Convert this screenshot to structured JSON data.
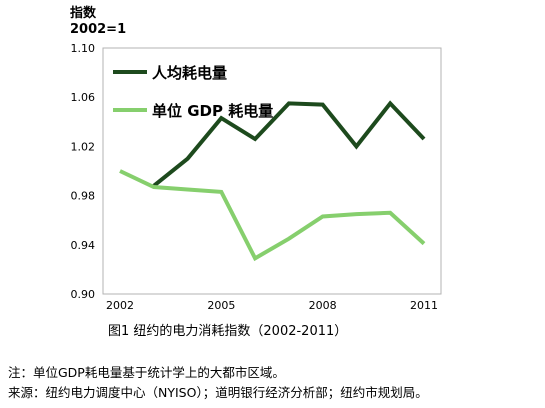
{
  "chart_data": {
    "type": "line",
    "ylabel_line1": "指数",
    "ylabel_line2": "2002=1",
    "x": [
      2002,
      2003,
      2004,
      2005,
      2006,
      2007,
      2008,
      2009,
      2010,
      2011
    ],
    "x_ticks": [
      2002,
      2005,
      2008,
      2011
    ],
    "y_ticks": [
      "0.90",
      "0.94",
      "0.98",
      "1.02",
      "1.06",
      "1.10"
    ],
    "ylim": [
      0.9,
      1.1
    ],
    "grid": false,
    "legend_position": "top-left",
    "series": [
      {
        "name": "人均耗电量",
        "color": "#1d4a1d",
        "values": [
          null,
          0.988,
          1.01,
          1.043,
          1.026,
          1.055,
          1.054,
          1.02,
          1.055,
          1.026
        ]
      },
      {
        "name": "单位 GDP 耗电量",
        "color": "#86cf6d",
        "values": [
          1.0,
          0.987,
          0.985,
          0.983,
          0.929,
          0.945,
          0.963,
          0.965,
          0.966,
          0.941
        ]
      }
    ]
  },
  "caption": "图1 纽约的电力消耗指数（2002-2011）",
  "notes": [
    "注：单位GDP耗电量基于统计学上的大都市区域。",
    "来源：纽约电力调度中心（NYISO）；道明银行经济分析部；纽约市规划局。"
  ]
}
